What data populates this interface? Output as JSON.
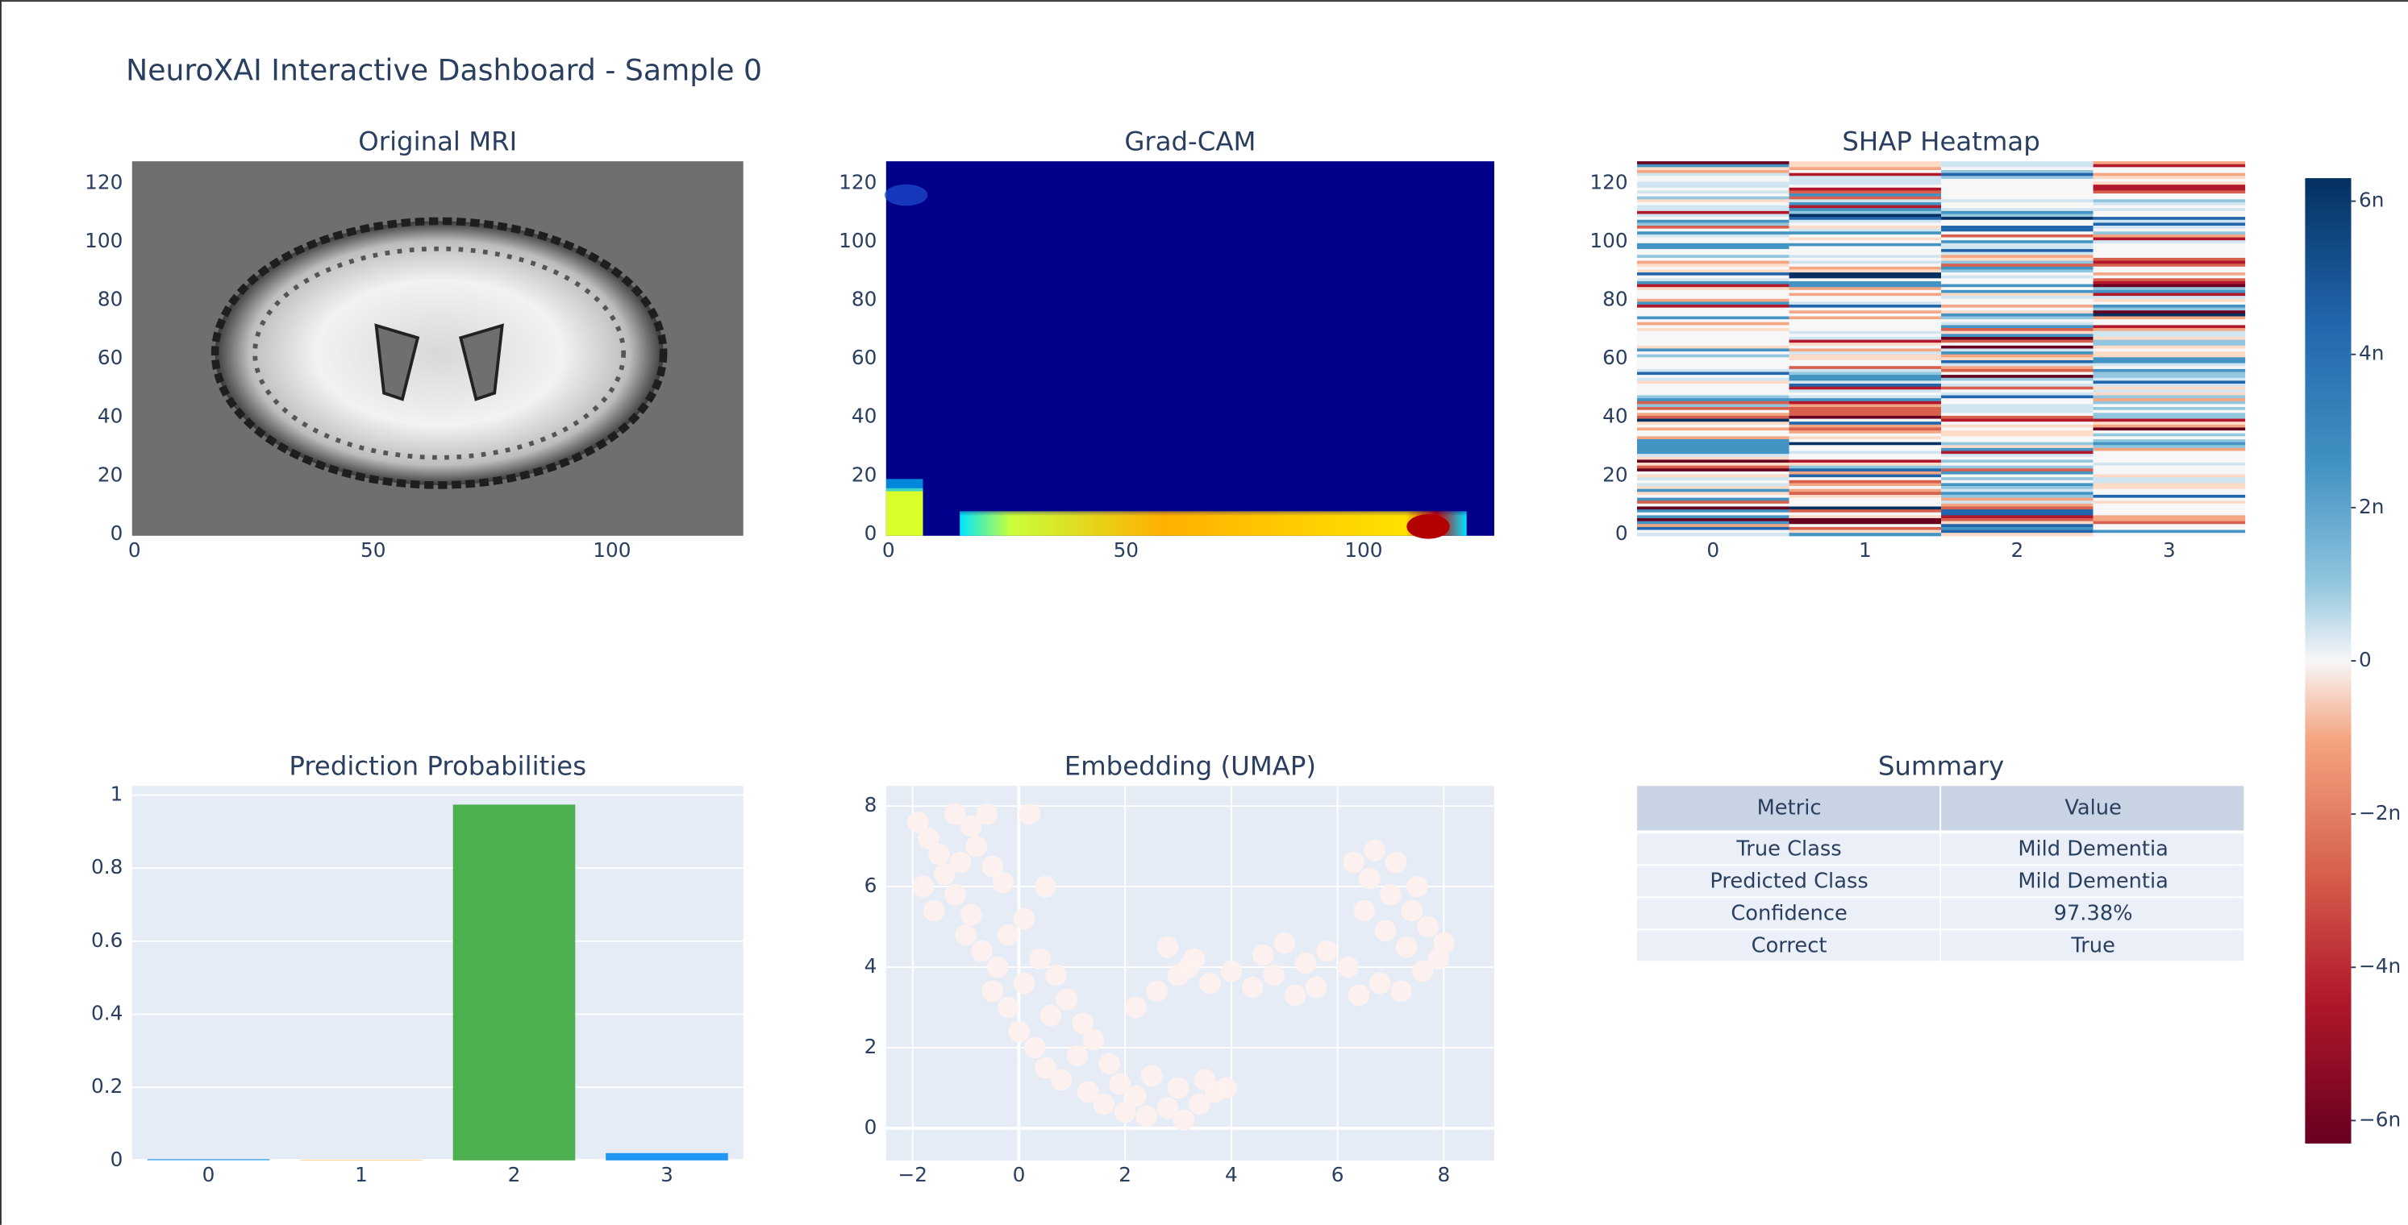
{
  "title": "NeuroXAI Interactive Dashboard - Sample 0",
  "chart_data": [
    {
      "type": "image",
      "title": "Original MRI",
      "xlim": [
        -0.5,
        127.5
      ],
      "ylim": [
        -0.5,
        127.5
      ],
      "xticks": [
        0,
        50,
        100
      ],
      "yticks": [
        0,
        20,
        40,
        60,
        80,
        100,
        120
      ]
    },
    {
      "type": "image",
      "title": "Grad-CAM",
      "xlim": [
        -0.5,
        127.5
      ],
      "ylim": [
        -0.5,
        127.5
      ],
      "xticks": [
        0,
        50,
        100
      ],
      "yticks": [
        0,
        20,
        40,
        60,
        80,
        100,
        120
      ]
    },
    {
      "type": "heatmap",
      "title": "SHAP Heatmap",
      "categories": [
        0,
        1,
        2,
        3
      ],
      "ylim": [
        -0.5,
        127.5
      ],
      "yticks": [
        0,
        20,
        40,
        60,
        80,
        100,
        120
      ],
      "colorbar": {
        "range": [
          -6.3e-09,
          6.3e-09
        ],
        "ticks": [
          {
            "value": 6e-09,
            "label": "6n"
          },
          {
            "value": 4e-09,
            "label": "4n"
          },
          {
            "value": 2e-09,
            "label": "2n"
          },
          0,
          {
            "value": -2e-09,
            "label": "−2n"
          },
          {
            "value": -4e-09,
            "label": "−4n"
          },
          {
            "value": -6e-09,
            "label": "−6n"
          }
        ]
      }
    },
    {
      "type": "bar",
      "title": "Prediction Probabilities",
      "categories": [
        0,
        1,
        2,
        3
      ],
      "values": [
        0.004,
        0.001,
        0.9738,
        0.02
      ],
      "colors": [
        "#64b5f6",
        "#ff9800",
        "#4caf50",
        "#2196f3"
      ],
      "ylim": [
        0,
        1.025
      ],
      "yticks": [
        0,
        0.2,
        0.4,
        0.6,
        0.8,
        1
      ],
      "grid": true
    },
    {
      "type": "scatter",
      "title": "Embedding (UMAP)",
      "color": "#fdf1ed",
      "xlim": [
        -2.5,
        8.95
      ],
      "ylim": [
        -0.8,
        8.5
      ],
      "xticks": [
        {
          "value": -2,
          "label": "−2"
        },
        0,
        2,
        4,
        6,
        8
      ],
      "yticks": [
        0,
        2,
        4,
        6,
        8
      ],
      "grid": true,
      "x": [
        -1.9,
        -1.7,
        -1.5,
        -1.2,
        -0.9,
        -0.6,
        -1.8,
        -1.4,
        -1.1,
        -0.8,
        -0.5,
        -1.6,
        -1.2,
        -0.9,
        -0.3,
        0.2,
        0.5,
        -1.0,
        -0.7,
        -0.4,
        -0.2,
        0.1,
        -0.5,
        -0.2,
        0.1,
        0.4,
        0.7,
        0.0,
        0.3,
        0.6,
        0.9,
        1.2,
        0.5,
        0.8,
        1.1,
        1.4,
        1.7,
        1.3,
        1.6,
        1.9,
        2.2,
        2.5,
        2.0,
        2.4,
        2.8,
        3.1,
        3.4,
        3.7,
        3.0,
        3.5,
        3.9,
        2.2,
        2.6,
        3.0,
        3.3,
        2.8,
        3.2,
        3.6,
        4.0,
        4.4,
        4.8,
        5.2,
        5.6,
        4.6,
        5.0,
        5.4,
        5.8,
        6.2,
        6.4,
        6.8,
        7.2,
        7.6,
        7.9,
        8.0,
        7.7,
        7.4,
        7.0,
        6.6,
        6.3,
        6.7,
        7.1,
        7.5,
        6.5,
        6.9,
        7.3
      ],
      "values": [
        7.6,
        7.2,
        6.8,
        7.8,
        7.5,
        7.8,
        6.0,
        6.3,
        6.6,
        7.0,
        6.5,
        5.4,
        5.8,
        5.3,
        6.1,
        7.8,
        6.0,
        4.8,
        4.4,
        4.0,
        4.8,
        5.2,
        3.4,
        3.0,
        3.6,
        4.2,
        3.8,
        2.4,
        2.0,
        2.8,
        3.2,
        2.6,
        1.5,
        1.2,
        1.8,
        2.2,
        1.6,
        0.9,
        0.6,
        1.1,
        0.8,
        1.3,
        0.4,
        0.3,
        0.5,
        0.2,
        0.6,
        0.9,
        1.0,
        1.2,
        1.0,
        3.0,
        3.4,
        3.8,
        4.2,
        4.5,
        4.0,
        3.6,
        3.9,
        3.5,
        3.8,
        3.3,
        3.5,
        4.3,
        4.6,
        4.1,
        4.4,
        4.0,
        3.3,
        3.6,
        3.4,
        3.9,
        4.2,
        4.6,
        5.0,
        5.4,
        5.8,
        6.2,
        6.6,
        6.9,
        6.6,
        6.0,
        5.4,
        4.9,
        4.5
      ]
    },
    {
      "type": "table",
      "title": "Summary",
      "header": [
        "Metric",
        "Value"
      ],
      "rows": [
        [
          "True Class",
          "Mild Dementia"
        ],
        [
          "Predicted Class",
          "Mild Dementia"
        ],
        [
          "Confidence",
          "97.38%"
        ],
        [
          "Correct",
          "True"
        ]
      ]
    }
  ]
}
